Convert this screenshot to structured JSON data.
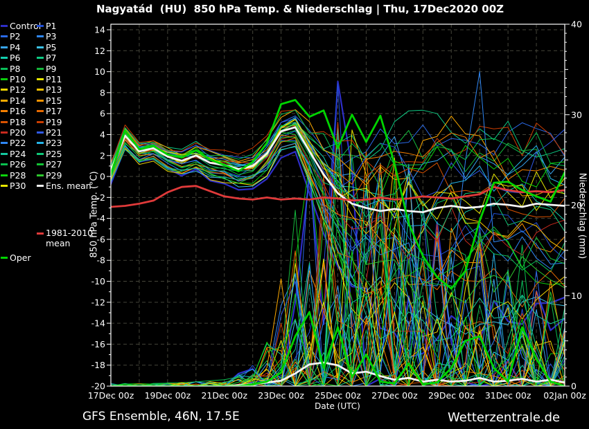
{
  "title": "Nagyatád  (HU)  850 hPa Temp. & Niederschlag | Thu, 17Dec2020 00Z",
  "footer": {
    "left": "GFS Ensemble, 46N, 17.5E",
    "right": "Wetterzentrale.de"
  },
  "colors": {
    "background": "#000000",
    "frame": "#ffffff",
    "grid": "#45453a",
    "ens_mean": "#f4f4f4",
    "climate_mean": "#e03a3a",
    "oper": "#00d400"
  },
  "legend": {
    "member_labels": [
      "Control",
      "P1",
      "P2",
      "P3",
      "P4",
      "P5",
      "P6",
      "P7",
      "P8",
      "P9",
      "P10",
      "P11",
      "P12",
      "P13",
      "P14",
      "P15",
      "P16",
      "P17",
      "P18",
      "P19",
      "P20",
      "P21",
      "P22",
      "P23",
      "P24",
      "P25",
      "P26",
      "P27",
      "P28",
      "P29",
      "P30"
    ],
    "member_colors": [
      "#2e2ec8",
      "#1f4fd8",
      "#2a6ae8",
      "#2f87f5",
      "#38a5f0",
      "#3cc3e8",
      "#12cfae",
      "#0ecb84",
      "#0abf5a",
      "#14b83c",
      "#0ccc0c",
      "#e8e800",
      "#f5d800",
      "#fbc400",
      "#ffab00",
      "#ff9400",
      "#f57f00",
      "#e66a00",
      "#d95200",
      "#cc3d00",
      "#c82a1e",
      "#2f5ae8",
      "#2f87f5",
      "#25b4e8",
      "#14c8a0",
      "#0fc878",
      "#0abf4f",
      "#12c435",
      "#0cd40c",
      "#2ec82e",
      "#e8e800"
    ],
    "ens_mean_label": "Ens. mean",
    "climate_label_line1": "1981-2010",
    "climate_label_line2": "mean",
    "oper_label": "Oper"
  },
  "chart_data": {
    "type": "line",
    "x_axis": {
      "label": "Date (UTC)",
      "tick_labels": [
        "17Dec 00z",
        "19Dec 00z",
        "21Dec 00z",
        "23Dec 00z",
        "25Dec 00z",
        "27Dec 00z",
        "29Dec 00z",
        "31Dec 00z",
        "02Jan 00z"
      ],
      "tick_days": [
        0,
        2,
        4,
        6,
        8,
        10,
        12,
        14,
        16
      ],
      "total_days": 16
    },
    "y_left": {
      "label": "850 hPa Temp. (°C)",
      "min": -20,
      "max": 14,
      "tick_step": 2
    },
    "y_right": {
      "label": "Niederschlag (mm)",
      "min": 0,
      "max": 40,
      "label_step": 10
    },
    "hours": [
      0,
      12,
      24,
      36,
      48,
      60,
      72,
      84,
      96,
      108,
      120,
      132,
      144,
      156,
      168,
      180,
      192,
      204,
      216,
      228,
      240,
      252,
      264,
      276,
      288,
      300,
      312,
      324,
      336,
      348,
      360,
      372,
      384
    ],
    "series": {
      "ens_mean_temp": [
        0.6,
        3.9,
        2.4,
        2.7,
        1.9,
        1.5,
        2.0,
        1.3,
        1.1,
        0.7,
        1.0,
        2.2,
        4.3,
        4.7,
        2.4,
        0.2,
        -1.6,
        -2.6,
        -3.0,
        -3.3,
        -3.1,
        -3.3,
        -3.4,
        -3.0,
        -2.8,
        -3.0,
        -2.9,
        -2.6,
        -2.7,
        -2.9,
        -2.6,
        -2.7,
        -2.8
      ],
      "climate_mean_temp": [
        -2.9,
        -2.8,
        -2.6,
        -2.3,
        -1.5,
        -1.0,
        -0.9,
        -1.4,
        -1.9,
        -2.1,
        -2.2,
        -2.0,
        -2.2,
        -2.1,
        -2.2,
        -2.0,
        -2.1,
        -2.3,
        -2.2,
        -2.0,
        -2.2,
        -2.1,
        -1.9,
        -2.0,
        -2.1,
        -1.9,
        -1.7,
        -1.0,
        -1.3,
        -1.5,
        -1.4,
        -1.5,
        -1.3
      ],
      "oper_temp": [
        0.2,
        4.4,
        2.6,
        2.9,
        2.1,
        1.8,
        2.5,
        1.6,
        1.1,
        0.5,
        1.4,
        3.2,
        6.9,
        7.3,
        5.7,
        6.3,
        2.7,
        5.9,
        3.3,
        5.8,
        1.2,
        -4.5,
        -7.6,
        -9.6,
        -10.7,
        -9.0,
        -4.2,
        -0.6,
        -0.5,
        -1.3,
        -1.9,
        -2.4,
        0.4
      ],
      "ens_mean_precip": [
        0,
        0,
        0,
        0,
        0,
        0,
        0,
        0,
        0,
        0.1,
        0.2,
        0.4,
        0.6,
        1.4,
        2.4,
        2.6,
        2.3,
        1.4,
        1.6,
        1.1,
        0.7,
        0.9,
        0.5,
        0.7,
        0.5,
        0.6,
        0.9,
        0.5,
        0.6,
        0.8,
        0.5,
        0.7,
        0.4
      ],
      "oper_precip": [
        0,
        0,
        0,
        0,
        0,
        0,
        0,
        0,
        0,
        0,
        0.2,
        0.5,
        1.5,
        5.5,
        8.2,
        2.0,
        6.5,
        1.0,
        3.5,
        0.5,
        0.3,
        2.5,
        0.2,
        0.4,
        2.0,
        5.0,
        5.5,
        2.0,
        0.5,
        6.5,
        3.0,
        0.5,
        0
      ]
    },
    "ensemble": {
      "count": 31,
      "seed": 7,
      "temp_spread": [
        0.9,
        1.1,
        0.9,
        0.9,
        1.0,
        1.1,
        1.2,
        1.3,
        1.3,
        1.4,
        1.5,
        1.6,
        1.6,
        1.7,
        2.6,
        4.2,
        6.0,
        7.2,
        8.2,
        9.0,
        9.4,
        9.5,
        9.5,
        9.4,
        9.2,
        9.0,
        8.8,
        8.6,
        8.5,
        8.3,
        8.2,
        8.2,
        8.2
      ],
      "precip_max": [
        0.3,
        0.3,
        0.3,
        0.3,
        0.4,
        0.4,
        0.5,
        0.6,
        0.8,
        1.5,
        3,
        6.5,
        12,
        24,
        32,
        36,
        38,
        32,
        34,
        30,
        28,
        25,
        20,
        22,
        18,
        15,
        18,
        15,
        14,
        16,
        14,
        12,
        10
      ],
      "temp_clamp": [
        -19.4,
        7.8
      ],
      "anomaly": {
        "member_index": 22,
        "hour_index": 26,
        "value": 10,
        "lead_value": 1.5
      }
    }
  }
}
